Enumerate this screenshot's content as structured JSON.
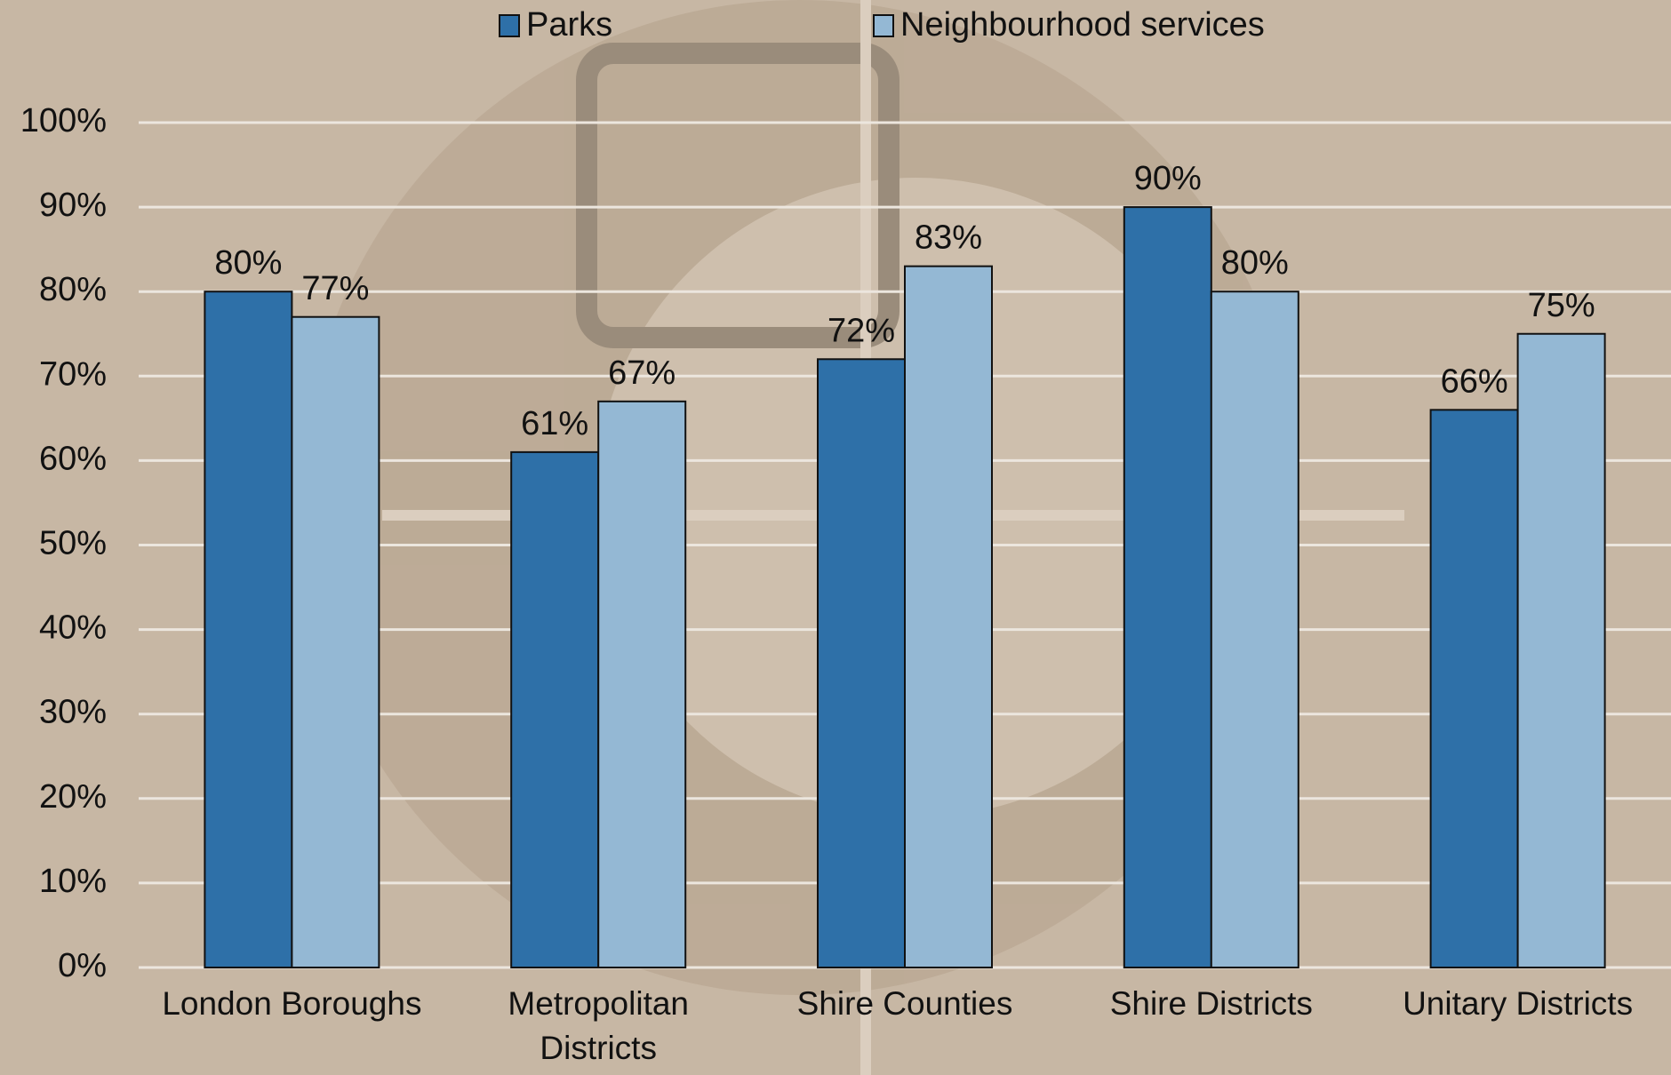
{
  "chart_data": {
    "type": "bar",
    "categories": [
      "London Boroughs",
      "Metropolitan Districts",
      "Shire Counties",
      "Shire Districts",
      "Unitary Districts"
    ],
    "series": [
      {
        "name": "Parks",
        "color": "#2e70a8",
        "values": [
          80,
          61,
          72,
          90,
          66
        ],
        "value_labels": [
          "80%",
          "61%",
          "72%",
          "90%",
          "66%"
        ]
      },
      {
        "name": "Neighbourhood services",
        "color": "#94b8d4",
        "values": [
          77,
          67,
          83,
          80,
          75
        ],
        "value_labels": [
          "77%",
          "67%",
          "83%",
          "80%",
          "75%"
        ]
      }
    ],
    "ylim": [
      0,
      100
    ],
    "yticks": [
      {
        "value": 0,
        "label": "0%"
      },
      {
        "value": 10,
        "label": "10%"
      },
      {
        "value": 20,
        "label": "20%"
      },
      {
        "value": 30,
        "label": "30%"
      },
      {
        "value": 40,
        "label": "40%"
      },
      {
        "value": 50,
        "label": "50%"
      },
      {
        "value": 60,
        "label": "60%"
      },
      {
        "value": 70,
        "label": "70%"
      },
      {
        "value": 80,
        "label": "80%"
      },
      {
        "value": 90,
        "label": "90%"
      },
      {
        "value": 100,
        "label": "100%"
      }
    ],
    "grid": true,
    "legend": "top"
  }
}
